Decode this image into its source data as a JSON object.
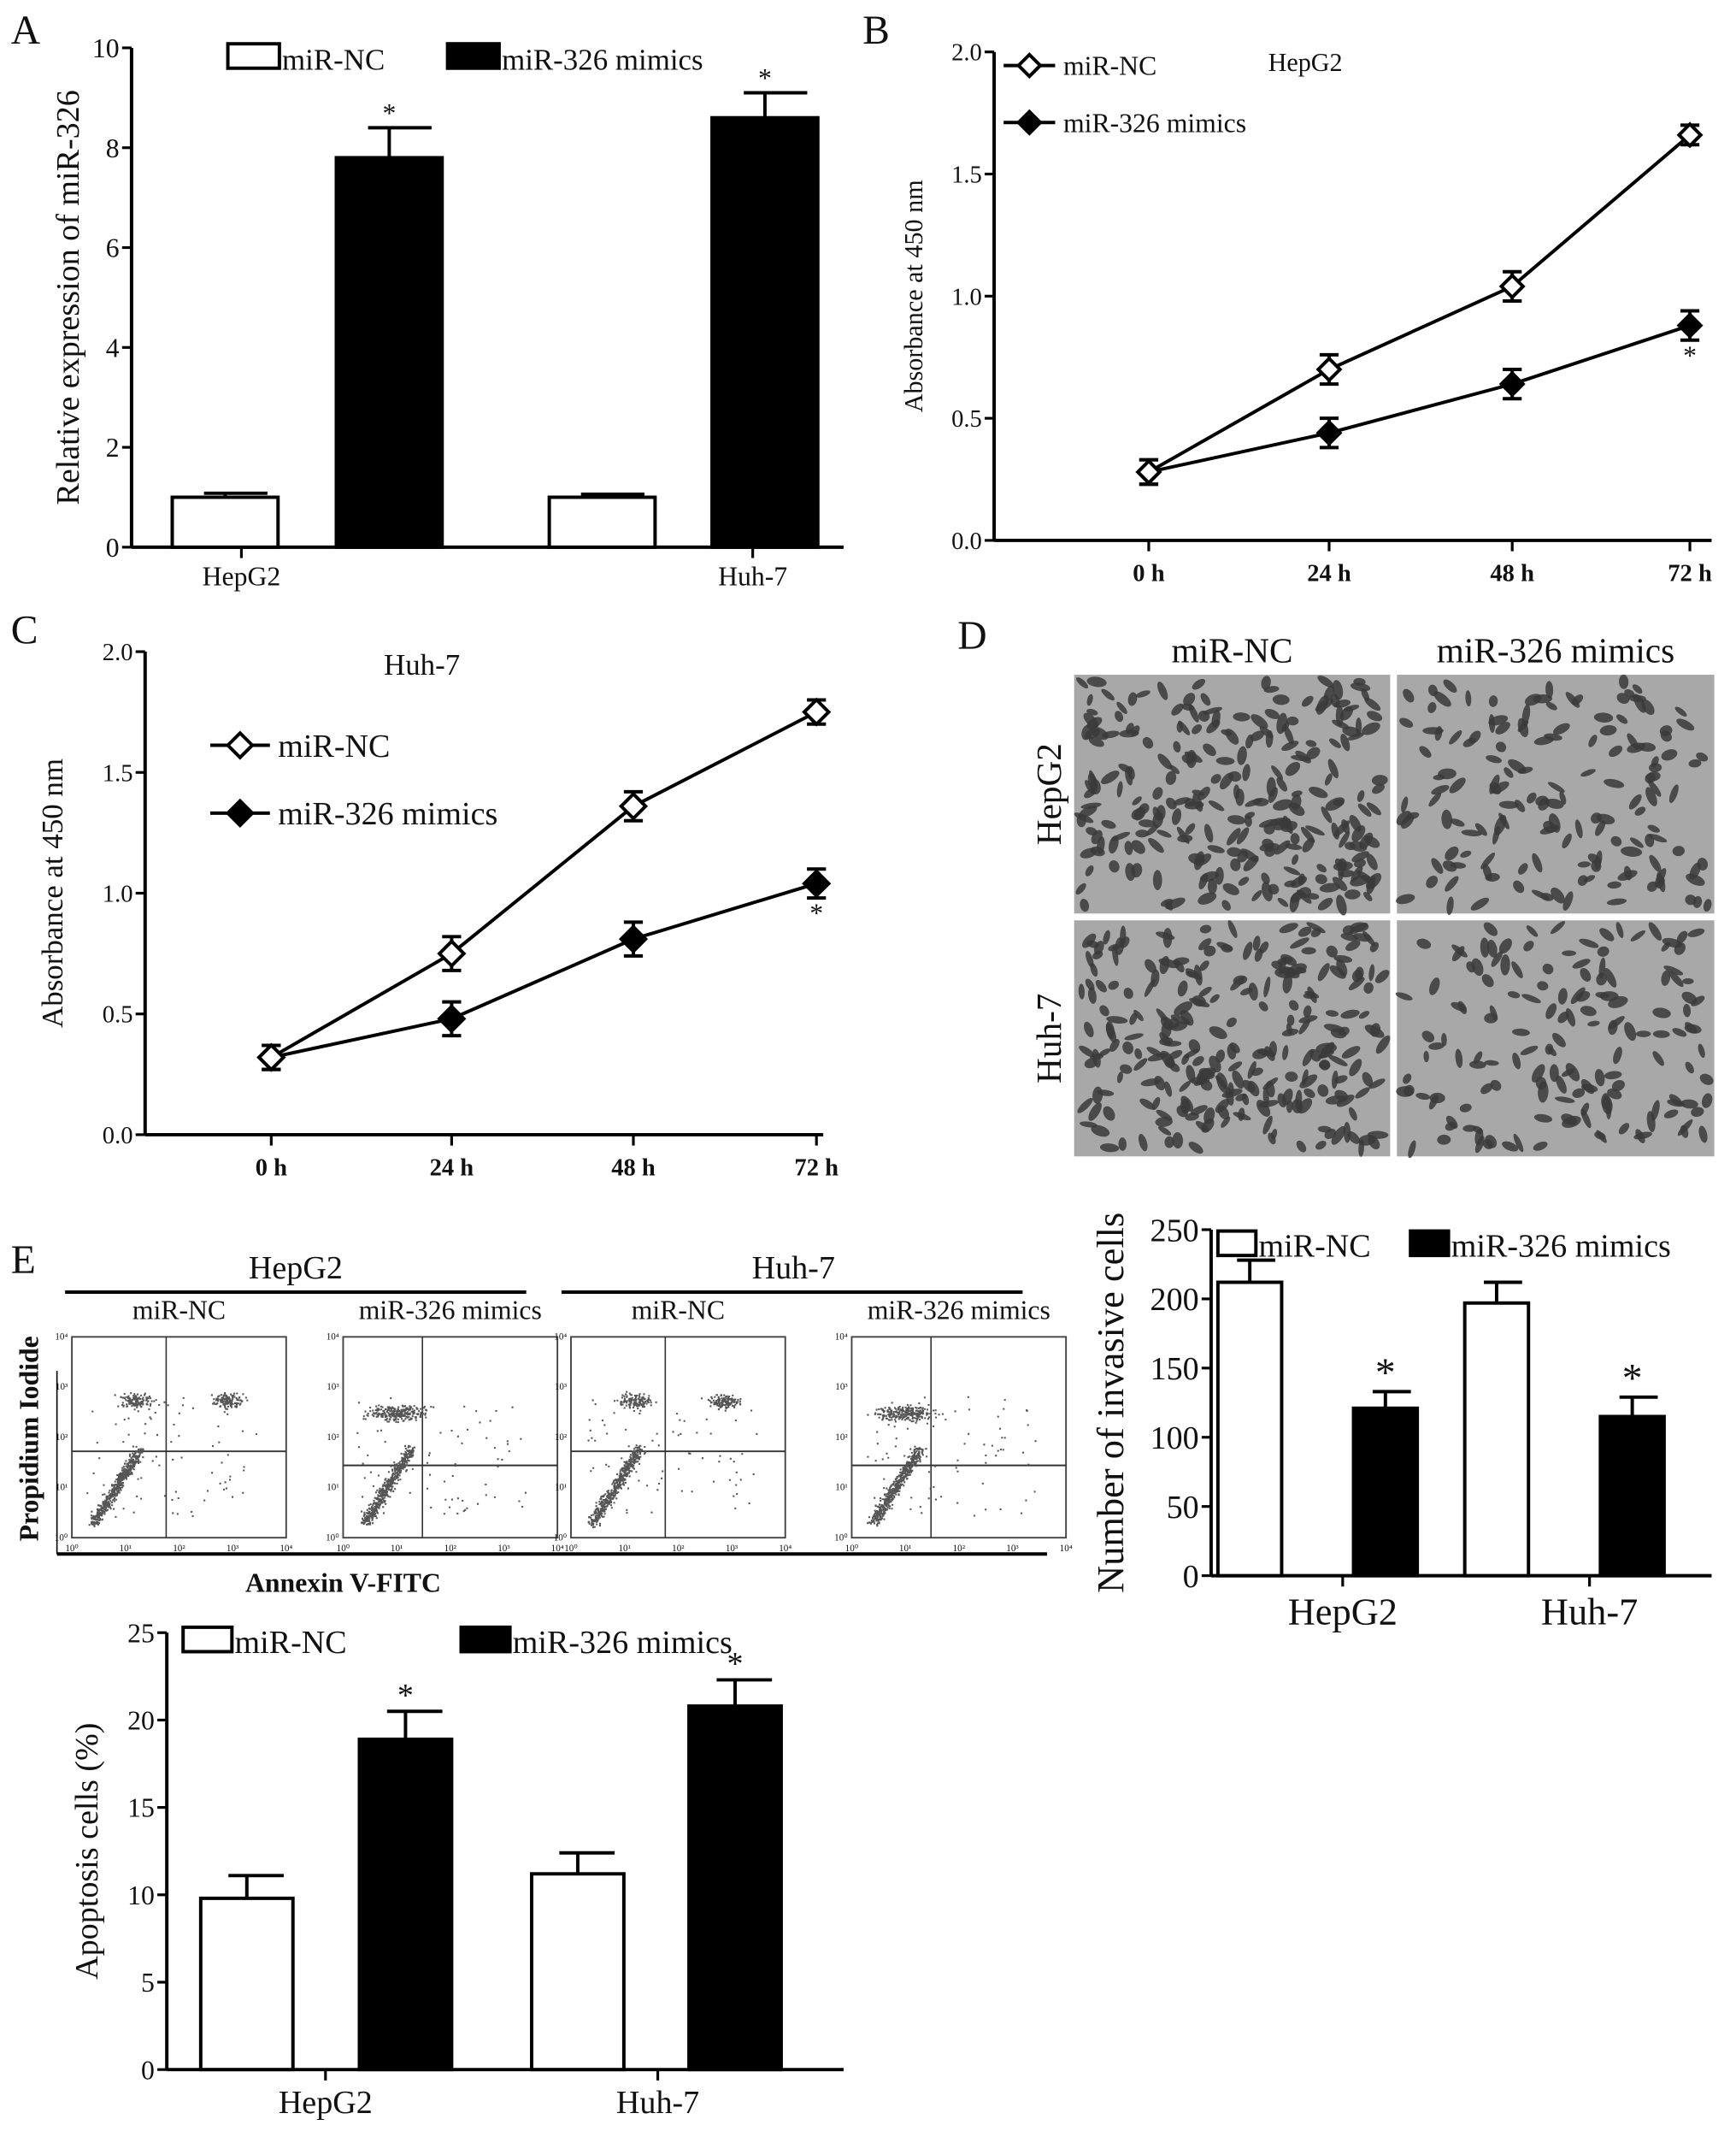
{
  "panels": {
    "A": "A",
    "B": "B",
    "C": "C",
    "D": "D",
    "E": "E"
  },
  "chart_data": [
    {
      "id": "A",
      "type": "bar",
      "ylabel": "Relative expression of miR-326",
      "xlabel": "",
      "ylim": [
        0,
        10
      ],
      "yticks": [
        "0",
        "2",
        "4",
        "6",
        "8",
        "10"
      ],
      "categories": [
        "HepG2",
        "Huh-7"
      ],
      "legend": [
        "miR-NC",
        "miR-326 mimics"
      ],
      "legend_position": "top",
      "series": [
        {
          "name": "miR-NC",
          "values": [
            1.0,
            1.0
          ],
          "errors": [
            0.08,
            0.06
          ],
          "color": "#ffffff"
        },
        {
          "name": "miR-326 mimics",
          "values": [
            7.8,
            8.6
          ],
          "errors": [
            0.6,
            0.5
          ],
          "color": "#000000"
        }
      ],
      "significance": [
        "*",
        "*"
      ]
    },
    {
      "id": "B",
      "type": "line",
      "title": "HepG2",
      "ylabel": "Absorbance at 450 nm",
      "ylim": [
        0,
        2.0
      ],
      "yticks": [
        "0.0",
        "0.5",
        "1.0",
        "1.5",
        "2.0"
      ],
      "categories": [
        "0 h",
        "24 h",
        "48 h",
        "72 h"
      ],
      "legend_position": "top-left",
      "series": [
        {
          "name": "miR-NC",
          "values": [
            0.28,
            0.7,
            1.04,
            1.66
          ],
          "errors": [
            0.05,
            0.06,
            0.06,
            0.04
          ],
          "marker": "open-diamond"
        },
        {
          "name": "miR-326 mimics",
          "values": [
            0.28,
            0.44,
            0.64,
            0.88
          ],
          "errors": [
            0.05,
            0.06,
            0.06,
            0.06
          ],
          "marker": "filled-diamond"
        }
      ],
      "significance": "*"
    },
    {
      "id": "C",
      "type": "line",
      "title": "Huh-7",
      "ylabel": "Absorbance at 450 nm",
      "ylim": [
        0,
        2.0
      ],
      "yticks": [
        "0.0",
        "0.5",
        "1.0",
        "1.5",
        "2.0"
      ],
      "categories": [
        "0 h",
        "24 h",
        "48 h",
        "72 h"
      ],
      "legend_position": "top-left",
      "series": [
        {
          "name": "miR-NC",
          "values": [
            0.32,
            0.75,
            1.36,
            1.75
          ],
          "errors": [
            0.05,
            0.07,
            0.06,
            0.05
          ],
          "marker": "open-diamond"
        },
        {
          "name": "miR-326 mimics",
          "values": [
            0.32,
            0.48,
            0.81,
            1.04
          ],
          "errors": [
            0.05,
            0.07,
            0.07,
            0.06
          ],
          "marker": "filled-diamond"
        }
      ],
      "significance": "*"
    },
    {
      "id": "D",
      "type": "bar",
      "ylabel": "Number of invasive cells",
      "ylim": [
        0,
        250
      ],
      "yticks": [
        "0",
        "50",
        "100",
        "150",
        "200",
        "250"
      ],
      "categories": [
        "HepG2",
        "Huh-7"
      ],
      "legend": [
        "miR-NC",
        "miR-326 mimics"
      ],
      "legend_position": "top",
      "series": [
        {
          "name": "miR-NC",
          "values": [
            212,
            197
          ],
          "errors": [
            16,
            15
          ],
          "color": "#ffffff"
        },
        {
          "name": "miR-326 mimics",
          "values": [
            121,
            115
          ],
          "errors": [
            12,
            14
          ],
          "color": "#000000"
        }
      ],
      "significance": [
        "*",
        "*"
      ]
    },
    {
      "id": "E",
      "type": "bar",
      "ylabel": "Apoptosis cells (%)",
      "ylim": [
        0,
        25
      ],
      "yticks": [
        "0",
        "5",
        "10",
        "15",
        "20",
        "25"
      ],
      "categories": [
        "HepG2",
        "Huh-7"
      ],
      "legend": [
        "miR-NC",
        "miR-326 mimics"
      ],
      "legend_position": "top",
      "series": [
        {
          "name": "miR-NC",
          "values": [
            9.8,
            11.2
          ],
          "errors": [
            1.3,
            1.2
          ],
          "color": "#ffffff"
        },
        {
          "name": "miR-326 mimics",
          "values": [
            18.9,
            20.8
          ],
          "errors": [
            1.6,
            1.5
          ],
          "color": "#000000"
        }
      ],
      "significance": [
        "*",
        "*"
      ]
    }
  ],
  "micrographs": {
    "columns": [
      "miR-NC",
      "miR-326 mimics"
    ],
    "rows": [
      "HepG2",
      "Huh-7"
    ]
  },
  "flow": {
    "groups": [
      "HepG2",
      "Huh-7"
    ],
    "columns": [
      "miR-NC",
      "miR-326 mimics",
      "miR-NC",
      "miR-326 mimics"
    ],
    "ylabel": "Propidium Iodide",
    "xlabel": "Annexin V-FITC",
    "ticks": [
      "10⁰",
      "10¹",
      "10²",
      "10³",
      "10⁴"
    ]
  }
}
